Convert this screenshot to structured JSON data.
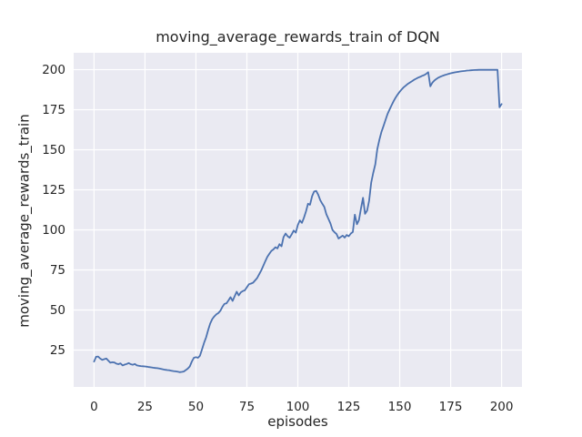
{
  "chart_data": {
    "type": "line",
    "title": "moving_average_rewards_train of DQN",
    "xlabel": "episodes",
    "ylabel": "moving_average_rewards_train",
    "grid": true,
    "legend": "none",
    "plot_bg_color": "#eaeaf2",
    "grid_color": "#ffffff",
    "text_color": "#262626",
    "xticks": [
      0,
      25,
      50,
      75,
      100,
      125,
      150,
      175,
      200
    ],
    "yticks": [
      25,
      50,
      75,
      100,
      125,
      150,
      175,
      200
    ],
    "xlim": [
      -10,
      210
    ],
    "ylim": [
      2,
      210.5
    ],
    "series": [
      {
        "name": "moving_average_rewards_train",
        "color": "#4c72b0",
        "x_start": 0,
        "x_step": 1,
        "values": [
          17.8,
          20.8,
          21.0,
          19.7,
          18.9,
          19.3,
          19.7,
          18.4,
          17.1,
          17.4,
          17.2,
          16.5,
          16.2,
          16.7,
          15.4,
          15.9,
          16.3,
          16.9,
          16.2,
          15.8,
          16.3,
          15.4,
          15.2,
          15.0,
          14.9,
          14.8,
          14.6,
          14.4,
          14.2,
          14.0,
          13.8,
          13.7,
          13.5,
          13.2,
          12.9,
          12.7,
          12.5,
          12.4,
          12.1,
          11.9,
          11.7,
          11.5,
          11.2,
          11.4,
          11.6,
          12.5,
          13.4,
          14.8,
          17.9,
          20.2,
          20.6,
          20.2,
          21.5,
          25.5,
          29.5,
          33.0,
          37.5,
          41.5,
          44.3,
          46.0,
          47.3,
          48.1,
          49.5,
          52.0,
          53.8,
          54.2,
          56.0,
          58.0,
          55.7,
          58.5,
          61.4,
          59.1,
          61.0,
          61.8,
          62.3,
          64.2,
          66.1,
          66.5,
          67.0,
          68.4,
          69.9,
          72.2,
          74.6,
          77.4,
          80.3,
          83.1,
          85.0,
          86.9,
          87.8,
          89.2,
          88.4,
          91.1,
          89.8,
          95.5,
          97.7,
          96.0,
          95.1,
          97.3,
          99.6,
          98.3,
          103.0,
          105.9,
          104.4,
          107.5,
          111.6,
          116.3,
          115.7,
          121.0,
          123.9,
          124.3,
          122.0,
          118.5,
          116.3,
          114.4,
          109.7,
          107.0,
          104.0,
          100.0,
          98.5,
          97.4,
          94.6,
          95.5,
          96.4,
          95.2,
          96.8,
          96.0,
          97.7,
          98.7,
          109.5,
          103.5,
          106.0,
          113.5,
          120.0,
          110.0,
          112.0,
          118.2,
          129.5,
          135.5,
          140.9,
          150.4,
          156.0,
          161.0,
          164.6,
          168.5,
          172.2,
          175.0,
          177.8,
          180.3,
          182.6,
          184.5,
          186.2,
          187.7,
          189.0,
          190.1,
          191.1,
          192.0,
          192.8,
          193.6,
          194.3,
          195.0,
          195.5,
          196.1,
          196.6,
          197.4,
          198.4,
          189.6,
          191.8,
          193.2,
          194.2,
          195.0,
          195.6,
          196.1,
          196.6,
          197.0,
          197.4,
          197.7,
          198.0,
          198.3,
          198.5,
          198.7,
          198.9,
          199.1,
          199.2,
          199.4,
          199.5,
          199.6,
          199.7,
          199.75,
          199.8,
          199.85,
          199.9,
          199.9,
          199.9,
          199.9,
          199.9,
          199.9,
          199.9,
          199.9,
          199.9,
          176.5,
          178.5
        ]
      }
    ]
  }
}
